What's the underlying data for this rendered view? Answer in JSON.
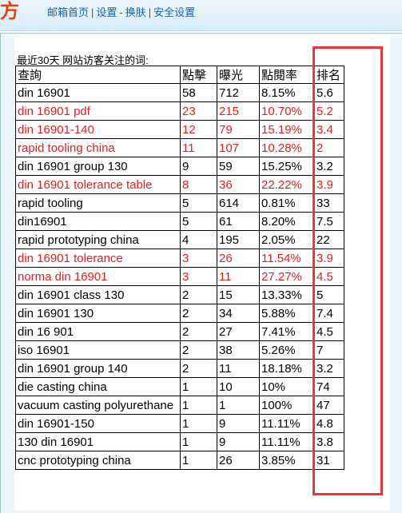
{
  "header": {
    "logo_text": "方",
    "nav": [
      {
        "label": "邮箱首页"
      },
      {
        "label": "设置"
      },
      {
        "label": "换肤"
      },
      {
        "label": "安全设置"
      }
    ],
    "separators": [
      "|",
      "-",
      "|"
    ]
  },
  "section": {
    "caption": "最近30天 网站访客关注的词:"
  },
  "table": {
    "columns": [
      "查詢",
      "點擊",
      "曝光",
      "點閱率",
      "排名"
    ],
    "rows": [
      {
        "query": "din 16901",
        "clicks": "58",
        "impressions": "712",
        "ctr": "8.15%",
        "rank": "5.6",
        "highlight": false
      },
      {
        "query": "din 16901 pdf",
        "clicks": "23",
        "impressions": "215",
        "ctr": "10.70%",
        "rank": "5.2",
        "highlight": true
      },
      {
        "query": "din 16901-140",
        "clicks": "12",
        "impressions": "79",
        "ctr": "15.19%",
        "rank": "3.4",
        "highlight": true
      },
      {
        "query": "rapid tooling china",
        "clicks": "11",
        "impressions": "107",
        "ctr": "10.28%",
        "rank": "2",
        "highlight": true
      },
      {
        "query": "din 16901 group 130",
        "clicks": "9",
        "impressions": "59",
        "ctr": "15.25%",
        "rank": "3.2",
        "highlight": false
      },
      {
        "query": "din 16901 tolerance table",
        "clicks": "8",
        "impressions": "36",
        "ctr": "22.22%",
        "rank": "3.9",
        "highlight": true
      },
      {
        "query": "rapid tooling",
        "clicks": "5",
        "impressions": "614",
        "ctr": "0.81%",
        "rank": "33",
        "highlight": false
      },
      {
        "query": "din16901",
        "clicks": "5",
        "impressions": "61",
        "ctr": "8.20%",
        "rank": "7.5",
        "highlight": false
      },
      {
        "query": "rapid prototyping china",
        "clicks": "4",
        "impressions": "195",
        "ctr": "2.05%",
        "rank": "22",
        "highlight": false
      },
      {
        "query": "din 16901 tolerance",
        "clicks": "3",
        "impressions": "26",
        "ctr": "11.54%",
        "rank": "3.9",
        "highlight": true
      },
      {
        "query": "norma din 16901",
        "clicks": "3",
        "impressions": "11",
        "ctr": "27.27%",
        "rank": "4.5",
        "highlight": true
      },
      {
        "query": "din 16901 class 130",
        "clicks": "2",
        "impressions": "15",
        "ctr": "13.33%",
        "rank": "5",
        "highlight": false
      },
      {
        "query": "din 16901 130",
        "clicks": "2",
        "impressions": "34",
        "ctr": "5.88%",
        "rank": "7.4",
        "highlight": false
      },
      {
        "query": "din 16 901",
        "clicks": "2",
        "impressions": "27",
        "ctr": "7.41%",
        "rank": "4.5",
        "highlight": false
      },
      {
        "query": "iso 16901",
        "clicks": "2",
        "impressions": "38",
        "ctr": "5.26%",
        "rank": "7",
        "highlight": false
      },
      {
        "query": "din 16901 group 140",
        "clicks": "2",
        "impressions": "11",
        "ctr": "18.18%",
        "rank": "3.2",
        "highlight": false
      },
      {
        "query": "die casting china",
        "clicks": "1",
        "impressions": "10",
        "ctr": "10%",
        "rank": "74",
        "highlight": false
      },
      {
        "query": "vacuum casting polyurethane",
        "clicks": "1",
        "impressions": "1",
        "ctr": "100%",
        "rank": "47",
        "highlight": false
      },
      {
        "query": "din 16901-150",
        "clicks": "1",
        "impressions": "9",
        "ctr": "11.11%",
        "rank": "4.8",
        "highlight": false
      },
      {
        "query": "130 din 16901",
        "clicks": "1",
        "impressions": "9",
        "ctr": "11.11%",
        "rank": "3.8",
        "highlight": false
      },
      {
        "query": "cnc prototyping china",
        "clicks": "1",
        "impressions": "26",
        "ctr": "3.85%",
        "rank": "31",
        "highlight": false
      }
    ]
  },
  "colors": {
    "highlight_text": "#e02020",
    "annotation_box": "#e8383d",
    "nav_link": "#1a62a8",
    "logo": "#e8410f"
  }
}
